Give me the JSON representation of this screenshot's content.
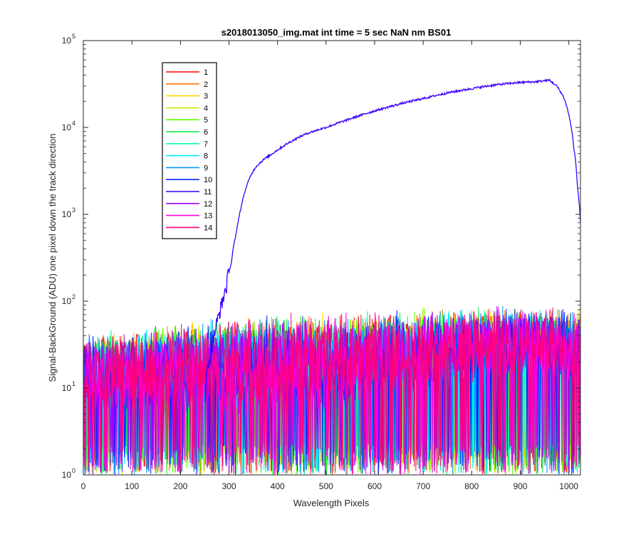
{
  "chart_data": {
    "type": "line",
    "title": "s2018013050_img.mat int time = 5 sec  NaN nm BS01",
    "xlabel": "Wavelength Pixels",
    "ylabel": "Signal-BackGround (ADU) one pixel down the track direction",
    "x_scale": "linear",
    "y_scale": "log",
    "xlim": [
      0,
      1024
    ],
    "ylim": [
      1,
      100000
    ],
    "x_ticks": [
      "0",
      "100",
      "200",
      "300",
      "400",
      "500",
      "600",
      "700",
      "800",
      "900",
      "1000"
    ],
    "x_tick_values": [
      0,
      100,
      200,
      300,
      400,
      500,
      600,
      700,
      800,
      900,
      1000
    ],
    "y_ticks": [
      {
        "value": 1,
        "base": "10",
        "exp": "0"
      },
      {
        "value": 10,
        "base": "10",
        "exp": "1"
      },
      {
        "value": 100,
        "base": "10",
        "exp": "2"
      },
      {
        "value": 1000,
        "base": "10",
        "exp": "3"
      },
      {
        "value": 10000,
        "base": "10",
        "exp": "4"
      },
      {
        "value": 100000,
        "base": "10",
        "exp": "5"
      }
    ],
    "grid": false,
    "legend_position": "top-left",
    "signal_series": {
      "name": "11",
      "x": [
        250,
        265,
        275,
        285,
        295,
        305,
        315,
        325,
        335,
        345,
        355,
        370,
        385,
        400,
        430,
        460,
        500,
        540,
        600,
        650,
        700,
        750,
        800,
        850,
        900,
        930,
        960,
        975,
        990,
        1000,
        1010,
        1018,
        1024
      ],
      "y": [
        8,
        30,
        55,
        90,
        150,
        280,
        600,
        1200,
        2000,
        2800,
        3500,
        4200,
        4800,
        5500,
        7000,
        8500,
        10000,
        12000,
        15500,
        18500,
        21500,
        25000,
        28000,
        31000,
        33000,
        33500,
        35000,
        30000,
        22000,
        14000,
        6000,
        2000,
        800
      ]
    },
    "noise_series": {
      "names": [
        "1",
        "2",
        "3",
        "4",
        "5",
        "6",
        "7",
        "8",
        "9",
        "10",
        "12",
        "13",
        "14"
      ],
      "x": [
        0,
        500,
        900,
        1024
      ],
      "floor_y": [
        1,
        1,
        1,
        1
      ],
      "median_y": [
        15,
        20,
        35,
        30
      ],
      "peak_y": [
        45,
        80,
        90,
        85
      ]
    },
    "series": [
      {
        "name": "1",
        "color": "#ff0000"
      },
      {
        "name": "2",
        "color": "#ff7300"
      },
      {
        "name": "3",
        "color": "#ffd700"
      },
      {
        "name": "4",
        "color": "#c8e600"
      },
      {
        "name": "5",
        "color": "#5aff00"
      },
      {
        "name": "6",
        "color": "#00f03c"
      },
      {
        "name": "7",
        "color": "#00ffa0"
      },
      {
        "name": "8",
        "color": "#00f0ff"
      },
      {
        "name": "9",
        "color": "#0096ff"
      },
      {
        "name": "10",
        "color": "#0028ff"
      },
      {
        "name": "11",
        "color": "#3c00ff"
      },
      {
        "name": "12",
        "color": "#a000ff"
      },
      {
        "name": "13",
        "color": "#ff00dc"
      },
      {
        "name": "14",
        "color": "#ff0078"
      }
    ]
  }
}
